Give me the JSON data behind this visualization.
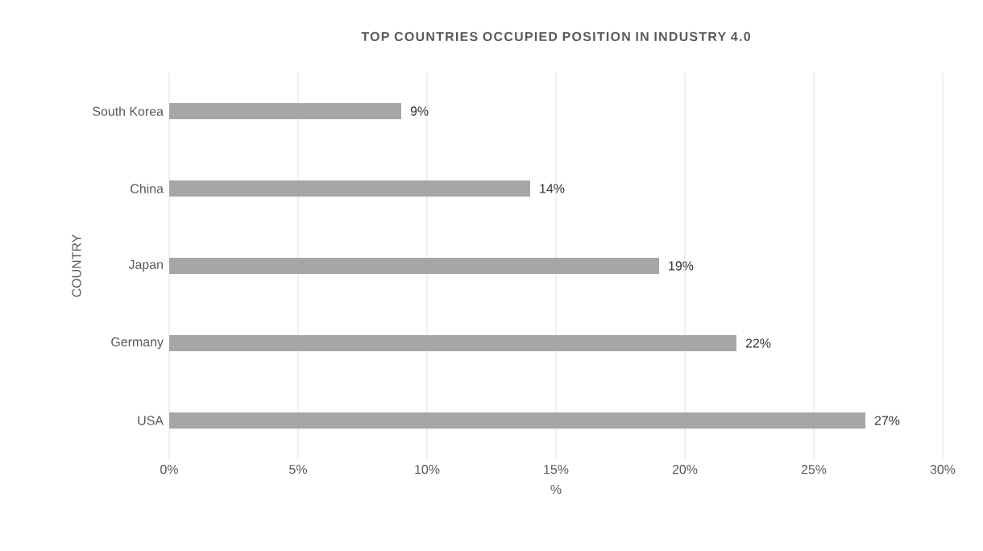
{
  "chart_data": {
    "type": "bar",
    "orientation": "horizontal",
    "title": "TOP COUNTRIES OCCUPIED POSITION IN INDUSTRY 4.0",
    "xlabel": "%",
    "ylabel": "COUNTRY",
    "categories": [
      "South Korea",
      "China",
      "Japan",
      "Germany",
      "USA"
    ],
    "values": [
      9,
      14,
      19,
      22,
      27
    ],
    "value_labels": [
      "9%",
      "14%",
      "19%",
      "22%",
      "27%"
    ],
    "color": "#a6a6a6",
    "xlim": [
      0,
      30
    ],
    "xticks": [
      {
        "value": 0,
        "label": "0%"
      },
      {
        "value": 5,
        "label": "5%"
      },
      {
        "value": 10,
        "label": "10%"
      },
      {
        "value": 15,
        "label": "15%"
      },
      {
        "value": 20,
        "label": "20%"
      },
      {
        "value": 25,
        "label": "25%"
      },
      {
        "value": 30,
        "label": "30%"
      }
    ],
    "grid": "x"
  }
}
